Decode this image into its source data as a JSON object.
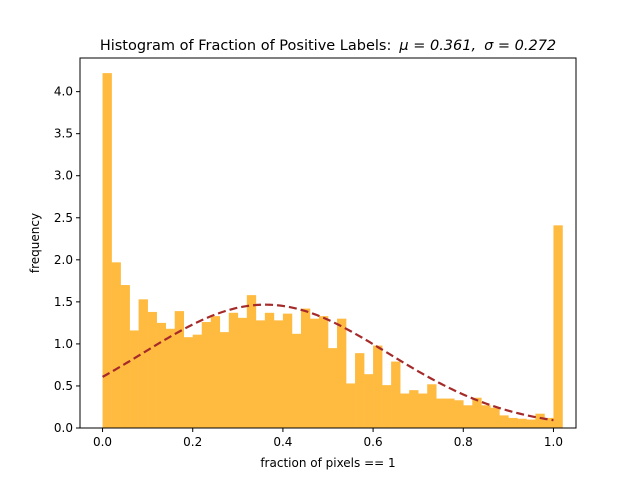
{
  "chart_data": {
    "type": "bar",
    "title_prefix": "Histogram of Fraction of Positive Labels",
    "title_colon": ":",
    "title_mu": "μ = 0.361,",
    "title_sigma": "σ = 0.272",
    "xlabel": "fraction of pixels == 1",
    "ylabel": "frequency",
    "xlim": [
      -0.05,
      1.05
    ],
    "ylim": [
      0,
      4.4
    ],
    "xticks": [
      0.0,
      0.2,
      0.4,
      0.6,
      0.8,
      1.0
    ],
    "xtick_labels": [
      "0.0",
      "0.2",
      "0.4",
      "0.6",
      "0.8",
      "1.0"
    ],
    "yticks": [
      0.0,
      0.5,
      1.0,
      1.5,
      2.0,
      2.5,
      3.0,
      3.5,
      4.0
    ],
    "ytick_labels": [
      "0.0",
      "0.5",
      "1.0",
      "1.5",
      "2.0",
      "2.5",
      "3.0",
      "3.5",
      "4.0"
    ],
    "bin_start": 0.0,
    "bin_width": 0.02,
    "values": [
      4.22,
      1.97,
      1.7,
      1.16,
      1.53,
      1.38,
      1.25,
      1.18,
      1.39,
      1.08,
      1.11,
      1.26,
      1.33,
      1.14,
      1.37,
      1.31,
      1.58,
      1.28,
      1.37,
      1.28,
      1.36,
      1.12,
      1.42,
      1.3,
      1.33,
      0.95,
      1.3,
      0.53,
      0.89,
      0.64,
      0.98,
      0.51,
      0.79,
      0.41,
      0.45,
      0.41,
      0.52,
      0.35,
      0.35,
      0.33,
      0.27,
      0.36,
      0.27,
      0.24,
      0.15,
      0.12,
      0.11,
      0.1,
      0.17,
      0.12,
      2.41
    ],
    "bar_color": "#FFBA40",
    "fit_curve": {
      "mu": 0.361,
      "sigma": 0.272,
      "x_range": [
        0.0,
        1.0
      ],
      "color": "#A52A2A",
      "style": "dashed"
    },
    "grid": false
  }
}
